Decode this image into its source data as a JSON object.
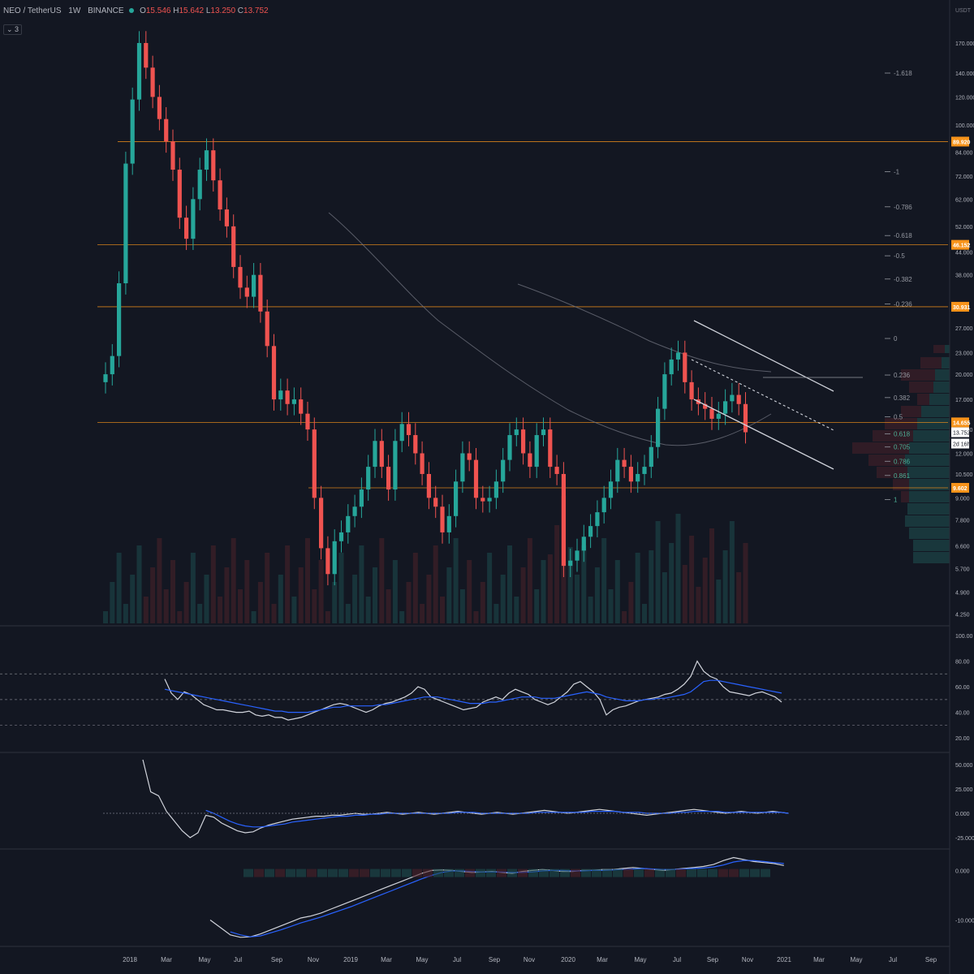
{
  "header": {
    "symbol": "NEO / TetherUS",
    "interval": "1W",
    "exchange": "BINANCE",
    "o_label": "O",
    "o_value": "15.546",
    "h_label": "H",
    "h_value": "15.642",
    "l_label": "L",
    "l_value": "13.250",
    "c_label": "C",
    "c_value": "13.752",
    "indicator_count": "3",
    "currency": "USDT"
  },
  "colors": {
    "background": "#131722",
    "up": "#26a69a",
    "down": "#ef5350",
    "level": "#f7931a",
    "ma": "#787b86",
    "signal": "#2962ff"
  },
  "chart_data": [
    {
      "type": "candlestick",
      "title": "",
      "scale": "log",
      "ylim": [
        4.0,
        200.0
      ],
      "x_labels": [
        "2018",
        "Mar",
        "May",
        "Jul",
        "Sep",
        "Nov",
        "2019",
        "Mar",
        "May",
        "Jul",
        "Sep",
        "Nov",
        "2020",
        "Mar",
        "May",
        "Jul",
        "Sep",
        "Nov",
        "2021",
        "Mar",
        "May",
        "Jul",
        "Sep"
      ],
      "y_ticks": [
        "170.000",
        "140.000",
        "120.000",
        "100.000",
        "84.000",
        "72.000",
        "62.000",
        "52.000",
        "44.000",
        "38.000",
        "27.000",
        "23.000",
        "20.000",
        "17.000",
        "14.000",
        "12.000",
        "10.500",
        "9.000",
        "7.800",
        "6.600",
        "5.700",
        "4.900",
        "4.250"
      ],
      "close": [
        20.0,
        22.5,
        36.0,
        78.0,
        118.0,
        170.0,
        145.0,
        120.0,
        104.0,
        90.0,
        75.0,
        55.0,
        48.0,
        62.0,
        75.0,
        85.0,
        70.0,
        58.0,
        52.0,
        40.0,
        35.0,
        33.0,
        38.0,
        30.0,
        24.0,
        17.0,
        18.0,
        16.5,
        17.0,
        15.5,
        14.0,
        9.0,
        6.5,
        5.5,
        6.8,
        7.2,
        8.0,
        8.5,
        9.5,
        11.0,
        13.0,
        11.0,
        9.5,
        13.0,
        14.5,
        13.5,
        12.0,
        10.5,
        9.0,
        8.5,
        7.2,
        8.0,
        10.0,
        12.0,
        11.5,
        9.0,
        8.8,
        9.0,
        10.0,
        11.5,
        13.5,
        14.0,
        12.0,
        11.0,
        13.5,
        14.0,
        11.0,
        10.5,
        5.8,
        6.0,
        6.4,
        7.0,
        7.5,
        8.2,
        9.0,
        10.0,
        11.5,
        11.0,
        10.0,
        10.5,
        11.0,
        12.5,
        16.0,
        20.0,
        22.0,
        23.0,
        19.0,
        17.0,
        16.5,
        16.0,
        15.0,
        15.5,
        16.8,
        17.5,
        16.5,
        13.75
      ],
      "levels": [
        89.92,
        46.152,
        30.931,
        14.655,
        9.602
      ],
      "level_labels": [
        "89.920",
        "46.152",
        "30.931",
        "14.655",
        "9.602"
      ],
      "last_price": "13.752",
      "countdown": "2d 16h",
      "fib_labels": [
        "-1.618",
        "-1",
        "-0.786",
        "-0.618",
        "-0.5",
        "-0.382",
        "-0.236",
        "0",
        "0.236",
        "0.382",
        "0.5",
        "0.618",
        "0.705",
        "0.786",
        "0.861",
        "1"
      ],
      "fib_values": [
        140.0,
        74.0,
        59.0,
        49.0,
        43.0,
        37.0,
        31.5,
        25.2,
        19.9,
        17.2,
        15.2,
        13.6,
        12.5,
        11.4,
        10.4,
        8.9
      ]
    },
    {
      "type": "line",
      "ylim": [
        10,
        105
      ],
      "y_ticks": [
        "100.00",
        "80.00",
        "60.00",
        "40.00",
        "20.00"
      ],
      "bands": [
        70,
        50,
        30
      ],
      "series": [
        {
          "values": [
            66,
            55,
            50,
            56,
            54,
            50,
            46,
            44,
            42,
            42,
            41,
            40,
            40,
            41,
            38,
            37,
            38,
            36,
            36,
            34,
            35,
            36,
            38,
            40,
            42,
            44,
            46,
            47,
            46,
            44,
            42,
            40,
            42,
            45,
            47,
            48,
            50,
            52,
            55,
            60,
            58,
            52,
            50,
            48,
            46,
            44,
            42,
            43,
            44,
            48,
            50,
            52,
            50,
            55,
            58,
            56,
            54,
            50,
            48,
            46,
            48,
            52,
            56,
            62,
            64,
            60,
            56,
            50,
            38,
            42,
            44,
            45,
            47,
            49,
            50,
            51,
            52,
            54,
            55,
            58,
            62,
            68,
            80,
            72,
            68,
            66,
            60,
            56,
            55,
            54,
            53,
            55,
            56,
            54,
            52,
            48
          ]
        },
        {
          "values": [
            58,
            57,
            56,
            55,
            54,
            53,
            52,
            51,
            50,
            49,
            48,
            47,
            46,
            45,
            44,
            43,
            42,
            41,
            41,
            40,
            40,
            40,
            40,
            41,
            42,
            43,
            44,
            44,
            45,
            45,
            45,
            45,
            45,
            46,
            46,
            47,
            48,
            49,
            50,
            51,
            52,
            52,
            52,
            51,
            50,
            49,
            48,
            47,
            47,
            47,
            48,
            48,
            49,
            50,
            51,
            52,
            52,
            52,
            51,
            51,
            51,
            52,
            53,
            54,
            55,
            56,
            55,
            54,
            52,
            51,
            50,
            49,
            49,
            49,
            50,
            50,
            51,
            51,
            52,
            53,
            54,
            56,
            60,
            64,
            65,
            65,
            64,
            63,
            62,
            61,
            60,
            59,
            58,
            57,
            56,
            55
          ]
        }
      ]
    },
    {
      "type": "line",
      "ylim": [
        -35,
        60
      ],
      "y_ticks": [
        "50.000",
        "25.000",
        "0.000",
        "-25.000"
      ],
      "series": [
        {
          "values": [
            55,
            22,
            18,
            2,
            -8,
            -18,
            -25,
            -20,
            -2,
            -4,
            -10,
            -14,
            -18,
            -20,
            -19,
            -15,
            -12,
            -10,
            -8,
            -6,
            -5,
            -4,
            -3,
            -3,
            -2,
            -2,
            -1,
            0,
            -1,
            -1,
            0,
            1,
            0,
            -1,
            0,
            1,
            0,
            -1,
            0,
            1,
            2,
            1,
            0,
            -1,
            0,
            1,
            0,
            -1,
            0,
            1,
            2,
            3,
            2,
            1,
            0,
            1,
            2,
            3,
            4,
            3,
            2,
            1,
            0,
            -1,
            -2,
            -1,
            0,
            1,
            2,
            3,
            4,
            3,
            2,
            1,
            0,
            1,
            2,
            1,
            0,
            1,
            2,
            1,
            0
          ]
        },
        {
          "values": [
            null,
            null,
            null,
            null,
            null,
            null,
            null,
            null,
            3,
            0,
            -4,
            -8,
            -11,
            -13,
            -14,
            -14,
            -13,
            -12,
            -11,
            -9,
            -8,
            -7,
            -6,
            -5,
            -4,
            -3,
            -3,
            -2,
            -2,
            -1,
            -1,
            0,
            0,
            0,
            0,
            0,
            0,
            0,
            0,
            0,
            1,
            1,
            1,
            0,
            0,
            0,
            0,
            0,
            0,
            0,
            1,
            1,
            1,
            1,
            1,
            1,
            1,
            2,
            2,
            2,
            2,
            1,
            1,
            1,
            0,
            0,
            0,
            0,
            1,
            1,
            2,
            2,
            2,
            2,
            1,
            1,
            1,
            1,
            1,
            1,
            1,
            1,
            0
          ]
        }
      ]
    },
    {
      "type": "line",
      "ylim": [
        -15,
        4
      ],
      "y_ticks": [
        "0.000",
        "-10.000"
      ],
      "series": [
        {
          "values": [
            -10,
            -11.5,
            -13,
            -13.5,
            -13.4,
            -12.8,
            -12,
            -11.2,
            -10.4,
            -9.6,
            -9.2,
            -8.6,
            -7.8,
            -7,
            -6.2,
            -5.4,
            -4.6,
            -3.8,
            -3,
            -2.2,
            -1.4,
            -0.6,
            0,
            0.1,
            0,
            -0.2,
            -0.4,
            -0.3,
            -0.2,
            -0.4,
            -0.6,
            -0.2,
            0,
            0.2,
            0,
            -0.2,
            -0.2,
            0,
            0,
            0.2,
            0.2,
            0.4,
            0.6,
            0.4,
            0.2,
            0,
            0.2,
            0.4,
            0.6,
            0.8,
            1.2,
            2,
            2.6,
            2.2,
            1.8,
            1.6,
            1.4,
            1
          ]
        },
        {
          "values": [
            null,
            null,
            -12.4,
            -13,
            -13.4,
            -13.2,
            -12.6,
            -12,
            -11.3,
            -10.6,
            -10,
            -9.4,
            -8.7,
            -8,
            -7.3,
            -6.5,
            -5.7,
            -4.9,
            -4.1,
            -3.3,
            -2.5,
            -1.7,
            -1,
            -0.4,
            -0.1,
            -0.1,
            -0.2,
            -0.3,
            -0.3,
            -0.3,
            -0.4,
            -0.4,
            -0.3,
            -0.1,
            0,
            0,
            -0.1,
            -0.1,
            0,
            0,
            0.1,
            0.2,
            0.3,
            0.4,
            0.3,
            0.2,
            0.2,
            0.3,
            0.4,
            0.5,
            0.7,
            1.1,
            1.7,
            2,
            2,
            1.8,
            1.6,
            1.4
          ]
        }
      ]
    }
  ]
}
